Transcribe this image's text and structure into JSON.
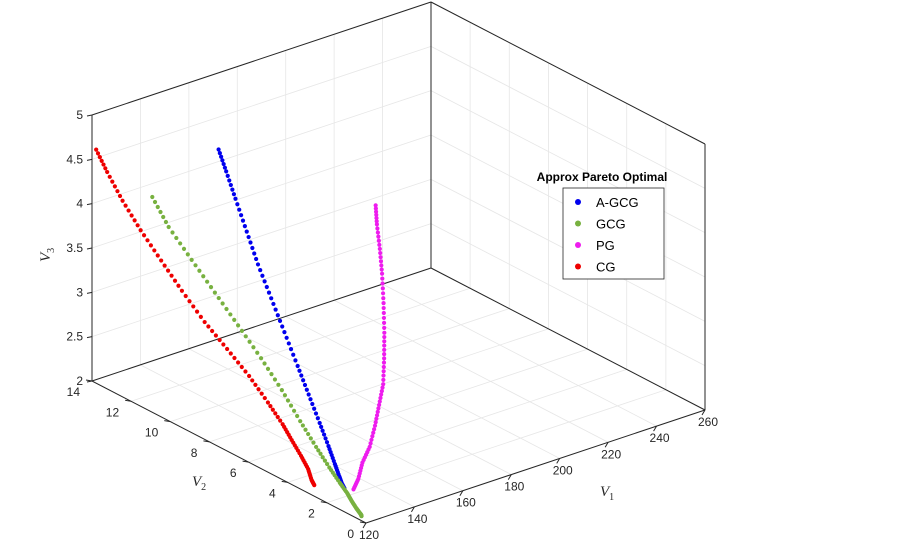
{
  "chart_data": {
    "type": "scatter",
    "projection": "3d",
    "title": "",
    "grid": true,
    "axes": {
      "x": {
        "label": "V",
        "label_sub": "1",
        "lim": [
          120,
          260
        ],
        "ticks": [
          120,
          140,
          160,
          180,
          200,
          220,
          240,
          260
        ]
      },
      "y": {
        "label": "V",
        "label_sub": "2",
        "lim": [
          0,
          14
        ],
        "ticks": [
          0,
          2,
          4,
          6,
          8,
          10,
          12,
          14
        ]
      },
      "z": {
        "label": "V",
        "label_sub": "3",
        "lim": [
          2,
          5
        ],
        "ticks": [
          2,
          2.5,
          3,
          3.5,
          4,
          4.5,
          5
        ]
      }
    },
    "legend": {
      "title": "Approx Pareto Optimal",
      "placement": "right",
      "entries": [
        "A-GCG",
        "GCG",
        "PG",
        "CG"
      ]
    },
    "series": [
      {
        "name": "A-GCG",
        "color": "#0000ee",
        "points": [
          [
            130.5,
            2.4,
            2.02
          ],
          [
            131,
            2.6,
            2.05
          ],
          [
            131.6,
            2.8,
            2.1
          ],
          [
            132.2,
            3.1,
            2.2
          ],
          [
            132.8,
            3.5,
            2.35
          ],
          [
            133.2,
            4,
            2.55
          ],
          [
            133.5,
            4.6,
            2.8
          ],
          [
            133.8,
            5.2,
            3.05
          ],
          [
            134,
            5.9,
            3.35
          ],
          [
            134.2,
            6.6,
            3.65
          ],
          [
            134.4,
            7.3,
            3.95
          ],
          [
            134.6,
            7.9,
            4.25
          ],
          [
            134.8,
            8.5,
            4.55
          ],
          [
            135,
            9,
            4.8
          ],
          [
            135.1,
            9.4,
            5.0
          ]
        ]
      },
      {
        "name": "GCG",
        "color": "#78b140",
        "points": [
          [
            122.2,
            0.5,
            2.0
          ],
          [
            122.8,
            0.6,
            2.0
          ],
          [
            123.6,
            0.8,
            2.0
          ],
          [
            124.8,
            1.1,
            2.0
          ],
          [
            126.2,
            1.5,
            2.02
          ],
          [
            127.6,
            1.9,
            2.05
          ],
          [
            128.6,
            2.4,
            2.1
          ],
          [
            129.1,
            3,
            2.2
          ],
          [
            129.3,
            3.7,
            2.35
          ],
          [
            129.2,
            4.5,
            2.55
          ],
          [
            128.9,
            5.4,
            2.8
          ],
          [
            128.4,
            6.4,
            3.05
          ],
          [
            127.8,
            7.5,
            3.3
          ],
          [
            127.1,
            8.6,
            3.55
          ],
          [
            126.4,
            9.7,
            3.8
          ],
          [
            125.8,
            10.8,
            4.05
          ],
          [
            125.5,
            11.6,
            4.3
          ]
        ]
      },
      {
        "name": "PG",
        "color": "#ee1cee",
        "points": [
          [
            131,
            2.0,
            2.05
          ],
          [
            133,
            2.0,
            2.15
          ],
          [
            135.5,
            2.1,
            2.3
          ],
          [
            138.5,
            2.1,
            2.45
          ],
          [
            141.5,
            2.2,
            2.65
          ],
          [
            144,
            2.3,
            2.85
          ],
          [
            146.5,
            2.4,
            3.05
          ],
          [
            148.5,
            2.6,
            3.3
          ],
          [
            150.2,
            2.8,
            3.55
          ],
          [
            151.5,
            3.0,
            3.85
          ],
          [
            152.5,
            3.2,
            4.15
          ],
          [
            153.2,
            3.4,
            4.4
          ],
          [
            153.6,
            3.6,
            4.65
          ],
          [
            153.9,
            3.7,
            4.85
          ]
        ]
      },
      {
        "name": "CG",
        "color": "#ee0000",
        "points": [
          [
            124.5,
            3.2,
            2.02
          ],
          [
            125,
            3.4,
            2.05
          ],
          [
            125.2,
            3.6,
            2.15
          ],
          [
            125.5,
            4.0,
            2.25
          ],
          [
            126.5,
            4.6,
            2.35
          ],
          [
            127.6,
            5.2,
            2.45
          ],
          [
            128,
            6,
            2.6
          ],
          [
            127.5,
            6.9,
            2.8
          ],
          [
            126.5,
            7.9,
            3.0
          ],
          [
            125.3,
            8.9,
            3.2
          ],
          [
            124,
            9.9,
            3.45
          ],
          [
            122.7,
            10.8,
            3.7
          ],
          [
            121.5,
            11.7,
            3.95
          ],
          [
            120.5,
            12.5,
            4.2
          ],
          [
            119.8,
            13.2,
            4.45
          ],
          [
            119.3,
            13.7,
            4.65
          ]
        ]
      }
    ]
  }
}
